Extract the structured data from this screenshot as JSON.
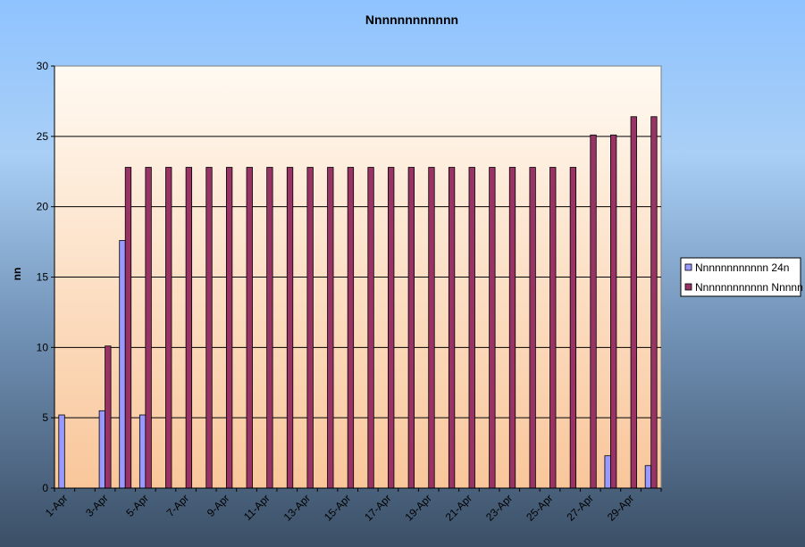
{
  "chart_data": {
    "type": "bar",
    "title": "Nnnnnnnnnnnn",
    "xlabel": "",
    "ylabel": "nn",
    "ylim": [
      0,
      30
    ],
    "yticks": [
      0,
      5,
      10,
      15,
      20,
      25,
      30
    ],
    "grid": true,
    "legend_position": "right",
    "categories": [
      "1-Apr",
      "2-Apr",
      "3-Apr",
      "4-Apr",
      "5-Apr",
      "6-Apr",
      "7-Apr",
      "8-Apr",
      "9-Apr",
      "10-Apr",
      "11-Apr",
      "12-Apr",
      "13-Apr",
      "14-Apr",
      "15-Apr",
      "16-Apr",
      "17-Apr",
      "18-Apr",
      "19-Apr",
      "20-Apr",
      "21-Apr",
      "22-Apr",
      "23-Apr",
      "24-Apr",
      "25-Apr",
      "26-Apr",
      "27-Apr",
      "28-Apr",
      "29-Apr",
      "30-Apr"
    ],
    "xtick_labels": [
      "1-Apr",
      "",
      "3-Apr",
      "",
      "5-Apr",
      "",
      "7-Apr",
      "",
      "9-Apr",
      "",
      "11-Apr",
      "",
      "13-Apr",
      "",
      "15-Apr",
      "",
      "17-Apr",
      "",
      "19-Apr",
      "",
      "21-Apr",
      "",
      "23-Apr",
      "",
      "25-Apr",
      "",
      "27-Apr",
      "",
      "29-Apr",
      ""
    ],
    "series": [
      {
        "name": "Nnnnnnnnnnnn 24n",
        "color": "#9999ff",
        "values": [
          5.2,
          0,
          5.5,
          17.6,
          5.2,
          0,
          0,
          0,
          0,
          0,
          0,
          0,
          0,
          0,
          0,
          0,
          0,
          0,
          0,
          0,
          0,
          0,
          0,
          0,
          0,
          0,
          0,
          2.3,
          0,
          1.6
        ]
      },
      {
        "name": "Nnnnnnnnnnnn Nnnnn",
        "color": "#993366",
        "values": [
          0,
          0,
          10.1,
          22.8,
          22.8,
          22.8,
          22.8,
          22.8,
          22.8,
          22.8,
          22.8,
          22.8,
          22.8,
          22.8,
          22.8,
          22.8,
          22.8,
          22.8,
          22.8,
          22.8,
          22.8,
          22.8,
          22.8,
          22.8,
          22.8,
          22.8,
          25.1,
          25.1,
          26.4,
          26.4
        ]
      }
    ]
  }
}
